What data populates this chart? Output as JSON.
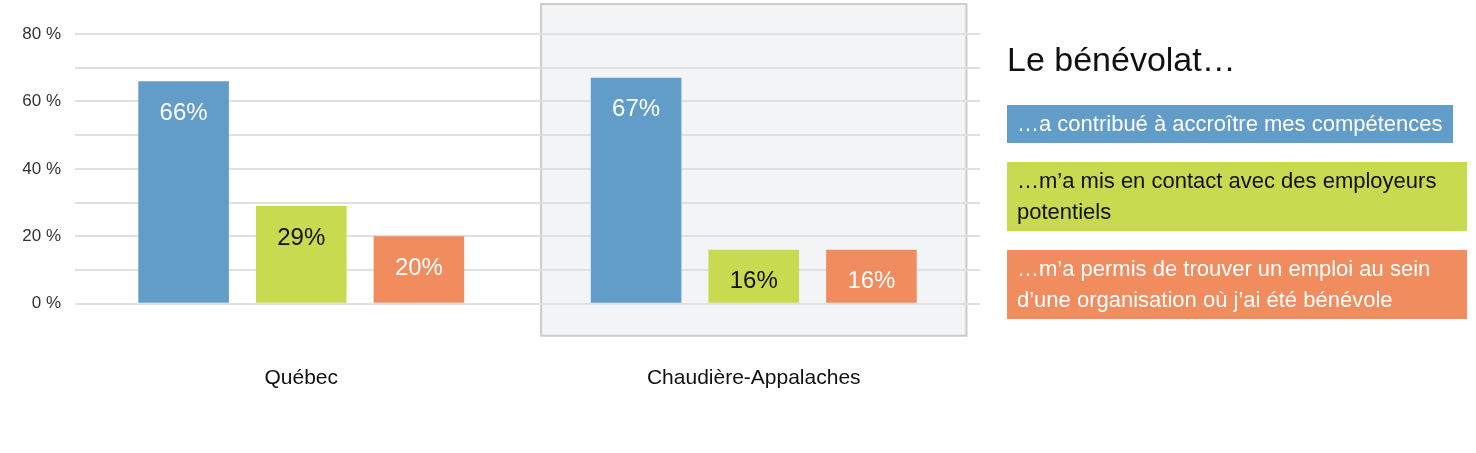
{
  "chart_data": {
    "type": "bar",
    "legend_title": "Le bénévolat…",
    "categories": [
      "Québec",
      "Chaudière-Appalaches"
    ],
    "series": [
      {
        "name": "…a contribué à accroître mes compétences",
        "color": "#629cc8",
        "values": [
          66,
          67
        ],
        "value_labels": [
          "66%",
          "67%"
        ]
      },
      {
        "name": "…m’a mis en contact avec des employeurs potentiels",
        "color": "#c8da4f",
        "values": [
          29,
          16
        ],
        "value_labels": [
          "29%",
          "16%"
        ]
      },
      {
        "name": "…m’a permis de trouver un emploi au sein d’une organisation où j’ai été bénévole",
        "color": "#f08c5e",
        "values": [
          20,
          16
        ],
        "value_labels": [
          "20%",
          "16%"
        ]
      }
    ],
    "ylim": [
      0,
      80
    ],
    "yticks": [
      {
        "value": 0,
        "label": "0 %"
      },
      {
        "value": 10,
        "label": null
      },
      {
        "value": 20,
        "label": "20 %"
      },
      {
        "value": 30,
        "label": null
      },
      {
        "value": 40,
        "label": "40 %"
      },
      {
        "value": 50,
        "label": null
      },
      {
        "value": 60,
        "label": "60 %"
      },
      {
        "value": 70,
        "label": null
      },
      {
        "value": 80,
        "label": "80 %"
      }
    ],
    "grid": "y",
    "legend": "right",
    "bands": [
      {
        "axis": "x",
        "from": "Chaudière-Appalaches",
        "to": "Chaudière-Appalaches",
        "color": "#f3f4f6"
      }
    ]
  }
}
